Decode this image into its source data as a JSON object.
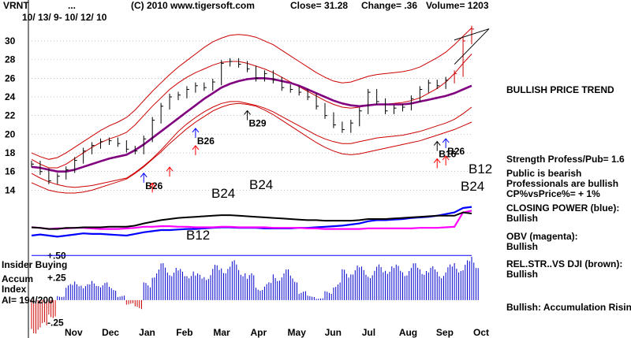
{
  "header": {
    "ticker": "VRNT",
    "dots": "...",
    "copyright": "(C) 2010 www.tigersoft.com",
    "close_text": "Close= 31.28",
    "change_text": "Change= .36",
    "volume_text": "Volume= 1203",
    "date_range": "10/ 13/ 9- 10/ 12/ 10"
  },
  "right_panel": {
    "bullish_trend": "BULLISH PRICE TREND",
    "strength": "Strength Profess/Pub= 1.6",
    "public_bearish": "Public is bearish",
    "pros_bullish": "Professionals are bullish",
    "cp_vs_price": "CP%vsPrice%= + 1%",
    "closing_power": "CLOSING POWER (blue):",
    "closing_power_val": "Bullish",
    "obv": "OBV (magenta):",
    "obv_val": "Bullish",
    "relstr": "REL.STR..VS DJI (brown):",
    "relstr_val": "Bullish",
    "accum_rising": "Bullish: Accumulation Rising"
  },
  "lower_panel": {
    "insider": "Insider Buying",
    "accum": "Accum",
    "index": "Index",
    "ai": "AI= 194/200"
  },
  "colors": {
    "price_bars": "#000000",
    "bands": "#cc0000",
    "ma": "#800080",
    "closing_power": "#0000ff",
    "obv": "#ff00ff",
    "relstr": "#000000",
    "accum_pos": "#0000cc",
    "accum_neg": "#cc0000",
    "signal_buy_blue": "#0000ff",
    "signal_buy_red": "#ff0000"
  },
  "chart_data": {
    "type": "line",
    "title": "VRNT",
    "ylim": [
      12.6,
      31.6
    ],
    "y_ticks": [
      14,
      16,
      18,
      20,
      22,
      24,
      26,
      28,
      30
    ],
    "x_ticks": [
      "Nov",
      "Dec",
      "Jan",
      "Feb",
      "Mar",
      "Apr",
      "May",
      "Jun",
      "Jul",
      "Aug",
      "Sep",
      "Oct"
    ],
    "accum_ticks": [
      "+.50",
      "+.25",
      "-.25"
    ],
    "accum_ylim": [
      -0.38,
      0.52
    ],
    "weeks": [
      0,
      1,
      2,
      3,
      4,
      5,
      6,
      7,
      8,
      9,
      10,
      11,
      12,
      13,
      14,
      15,
      16,
      17,
      18,
      19,
      20,
      21,
      22,
      23,
      24,
      25,
      26,
      27,
      28,
      29,
      30,
      31,
      32,
      33,
      34,
      35,
      36,
      37,
      38,
      39,
      40,
      41,
      42,
      43,
      44,
      45,
      46,
      47,
      48,
      49,
      50,
      51
    ],
    "price": [
      16.8,
      16.0,
      15.0,
      15.5,
      16.2,
      17.2,
      18.2,
      18.8,
      19.2,
      19.3,
      19.0,
      18.4,
      18.2,
      19.5,
      21.5,
      23.0,
      24.0,
      24.2,
      24.8,
      25.2,
      25.0,
      25.6,
      27.6,
      27.8,
      27.5,
      27.0,
      26.0,
      26.5,
      25.8,
      25.0,
      24.8,
      24.5,
      24.0,
      23.0,
      22.0,
      21.0,
      20.5,
      21.2,
      22.5,
      24.5,
      23.5,
      22.5,
      22.8,
      22.9,
      23.8,
      24.8,
      25.5,
      25.2,
      25.8,
      26.5,
      30.0,
      31.28
    ],
    "ma": [
      16.5,
      16.4,
      16.2,
      16.0,
      16.0,
      16.2,
      16.5,
      16.8,
      17.1,
      17.4,
      17.6,
      17.8,
      18.3,
      18.9,
      19.6,
      20.3,
      21.0,
      21.7,
      22.4,
      23.1,
      23.8,
      24.4,
      25.0,
      25.4,
      25.7,
      25.9,
      26.0,
      26.0,
      25.9,
      25.7,
      25.5,
      25.2,
      24.8,
      24.4,
      24.0,
      23.6,
      23.3,
      23.1,
      23.0,
      23.1,
      23.2,
      23.2,
      23.2,
      23.2,
      23.3,
      23.5,
      23.7,
      23.9,
      24.1,
      24.4,
      24.8,
      25.2
    ],
    "band_upper": [
      18.0,
      17.6,
      17.3,
      17.5,
      18.0,
      18.6,
      19.2,
      19.8,
      20.4,
      20.9,
      21.3,
      21.8,
      22.6,
      23.6,
      24.6,
      25.5,
      26.4,
      27.2,
      27.9,
      28.6,
      29.3,
      29.9,
      30.3,
      30.6,
      30.7,
      30.6,
      30.4,
      30.0,
      29.6,
      29.0,
      28.4,
      27.8,
      27.2,
      26.6,
      26.1,
      25.7,
      25.5,
      25.6,
      25.9,
      26.2,
      26.4,
      26.5,
      26.6,
      26.7,
      26.9,
      27.2,
      27.7,
      28.2,
      28.8,
      29.6,
      30.5,
      31.4
    ],
    "band_lower": [
      15.8,
      15.3,
      14.9,
      14.6,
      14.4,
      14.3,
      14.4,
      14.5,
      14.7,
      14.9,
      15.1,
      15.3,
      15.9,
      16.6,
      17.4,
      18.3,
      19.3,
      20.3,
      21.1,
      21.8,
      22.4,
      22.9,
      23.3,
      23.5,
      23.5,
      23.3,
      23.1,
      22.8,
      22.4,
      21.9,
      21.4,
      20.9,
      20.4,
      19.9,
      19.5,
      19.2,
      19.0,
      19.0,
      19.2,
      19.4,
      19.6,
      19.7,
      19.8,
      19.9,
      20.1,
      20.3,
      20.6,
      20.9,
      21.2,
      21.6,
      22.2,
      22.9
    ],
    "band_inner_upper": [
      17.3,
      16.8,
      16.4,
      16.4,
      16.8,
      17.4,
      18.0,
      18.6,
      19.1,
      19.5,
      19.8,
      20.2,
      21.0,
      22.0,
      23.0,
      23.9,
      24.8,
      25.5,
      26.1,
      26.6,
      27.0,
      27.4,
      27.7,
      27.8,
      27.8,
      27.6,
      27.3,
      27.0,
      26.6,
      26.1,
      25.6,
      25.1,
      24.6,
      24.1,
      23.6,
      23.2,
      22.9,
      22.8,
      22.9,
      23.1,
      23.2,
      23.2,
      23.3,
      23.4,
      23.6,
      23.9,
      24.4,
      24.9,
      25.6,
      26.5,
      27.6,
      28.6
    ],
    "band_inner_lower": [
      14.8,
      14.4,
      14.0,
      13.8,
      13.7,
      13.7,
      13.8,
      14.0,
      14.3,
      14.6,
      14.9,
      15.2,
      15.8,
      16.5,
      17.3,
      18.1,
      19.0,
      19.8,
      20.6,
      21.3,
      21.9,
      22.5,
      22.9,
      23.2,
      23.3,
      23.2,
      23.0,
      22.6,
      22.1,
      21.5,
      20.9,
      20.3,
      19.7,
      19.1,
      18.6,
      18.2,
      17.9,
      17.8,
      17.9,
      18.1,
      18.3,
      18.5,
      18.7,
      18.9,
      19.1,
      19.3,
      19.6,
      19.9,
      20.2,
      20.5,
      20.9,
      21.3
    ],
    "closing_power": [
      0.3,
      0.32,
      0.3,
      0.28,
      0.3,
      0.32,
      0.34,
      0.33,
      0.33,
      0.32,
      0.31,
      0.3,
      0.33,
      0.36,
      0.38,
      0.4,
      0.4,
      0.41,
      0.42,
      0.42,
      0.43,
      0.44,
      0.45,
      0.45,
      0.44,
      0.44,
      0.44,
      0.43,
      0.43,
      0.43,
      0.43,
      0.44,
      0.44,
      0.45,
      0.46,
      0.47,
      0.48,
      0.5,
      0.52,
      0.56,
      0.58,
      0.58,
      0.59,
      0.6,
      0.62,
      0.63,
      0.64,
      0.66,
      0.69,
      0.72,
      0.8,
      0.82
    ],
    "obv": [
      0.45,
      0.44,
      0.42,
      0.43,
      0.43,
      0.44,
      0.44,
      0.43,
      0.42,
      0.42,
      0.42,
      0.43,
      0.44,
      0.46,
      0.46,
      0.47,
      0.47,
      0.46,
      0.46,
      0.45,
      0.45,
      0.45,
      0.46,
      0.46,
      0.45,
      0.45,
      0.45,
      0.45,
      0.44,
      0.44,
      0.44,
      0.44,
      0.43,
      0.43,
      0.42,
      0.42,
      0.42,
      0.42,
      0.42,
      0.43,
      0.43,
      0.43,
      0.43,
      0.43,
      0.43,
      0.44,
      0.44,
      0.44,
      0.45,
      0.46,
      0.72,
      0.75
    ],
    "relstr": [
      0.45,
      0.44,
      0.42,
      0.42,
      0.44,
      0.44,
      0.45,
      0.45,
      0.45,
      0.46,
      0.46,
      0.46,
      0.48,
      0.52,
      0.55,
      0.58,
      0.6,
      0.62,
      0.63,
      0.64,
      0.65,
      0.66,
      0.67,
      0.67,
      0.66,
      0.65,
      0.64,
      0.63,
      0.62,
      0.61,
      0.6,
      0.59,
      0.58,
      0.58,
      0.57,
      0.57,
      0.57,
      0.57,
      0.58,
      0.6,
      0.6,
      0.6,
      0.61,
      0.62,
      0.63,
      0.64,
      0.65,
      0.66,
      0.66,
      0.66,
      0.72,
      0.7
    ],
    "accum": [
      -0.38,
      -0.35,
      -0.2,
      0.05,
      0.18,
      0.22,
      0.18,
      0.22,
      0.2,
      0.15,
      0.05,
      -0.05,
      -0.1,
      0.2,
      0.35,
      0.42,
      0.38,
      0.35,
      0.35,
      0.3,
      0.32,
      0.4,
      0.42,
      0.45,
      0.38,
      0.3,
      0.15,
      0.2,
      0.3,
      0.35,
      0.28,
      0.1,
      0.05,
      0.02,
      0.1,
      0.2,
      0.35,
      0.4,
      0.38,
      0.35,
      0.4,
      0.42,
      0.4,
      0.38,
      0.42,
      0.4,
      0.38,
      0.35,
      0.4,
      0.44,
      0.45,
      0.5
    ],
    "signals_small": [
      {
        "label": "B26",
        "week": 19,
        "color": "#0000ff"
      },
      {
        "label": "B29",
        "week": 25,
        "color": "#000000"
      },
      {
        "label": "B16",
        "week": 47,
        "color": "#000000"
      },
      {
        "label": "B26",
        "week": 48,
        "color": "#0000ff"
      },
      {
        "label": "B26",
        "week": 13,
        "color": "#0000ff"
      }
    ],
    "signals_large": [
      {
        "label": "B24",
        "where": "left"
      },
      {
        "label": "B24",
        "where": "mid"
      },
      {
        "label": "B12",
        "where": "left-cp"
      },
      {
        "label": "B12",
        "where": "right-top"
      },
      {
        "label": "B24",
        "where": "right-bot"
      }
    ]
  }
}
